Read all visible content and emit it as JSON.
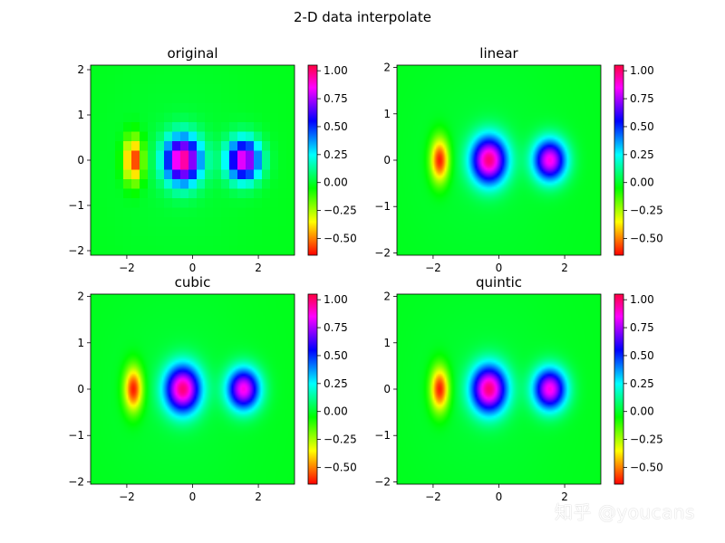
{
  "suptitle": "2-D data interpolate",
  "watermark": "知乎 @youcans",
  "chart_data": [
    {
      "type": "heatmap",
      "title": "original",
      "style": "pixelated",
      "xlim": [
        -3.1,
        3.1
      ],
      "ylim": [
        -2.1,
        2.1
      ],
      "xticks": [
        -2,
        0,
        2
      ],
      "xticklabels": [
        "−2",
        "0",
        "2"
      ],
      "yticks": [
        -2,
        -1,
        0,
        1,
        2
      ],
      "yticklabels": [
        "−2",
        "−1",
        "0",
        "1",
        "2"
      ],
      "colorbar": {
        "range": [
          -0.65,
          1.05
        ],
        "ticks": [
          1.0,
          0.75,
          0.5,
          0.25,
          0.0,
          -0.25,
          -0.5
        ],
        "ticklabels": [
          "1.00",
          "0.75",
          "0.50",
          "0.25",
          "0.00",
          "−0.25",
          "−0.50"
        ]
      }
    },
    {
      "type": "heatmap",
      "title": "linear",
      "style": "smooth",
      "xlim": [
        -3.1,
        3.1
      ],
      "ylim": [
        -2.05,
        2.05
      ],
      "xticks": [
        -2,
        0,
        2
      ],
      "xticklabels": [
        "−2",
        "0",
        "2"
      ],
      "yticks": [
        -2,
        -1,
        0,
        1,
        2
      ],
      "yticklabels": [
        "−2",
        "−1",
        "0",
        "1",
        "2"
      ],
      "colorbar": {
        "range": [
          -0.65,
          1.05
        ],
        "ticks": [
          1.0,
          0.75,
          0.5,
          0.25,
          0.0,
          -0.25,
          -0.5
        ],
        "ticklabels": [
          "1.00",
          "0.75",
          "0.50",
          "0.25",
          "0.00",
          "−0.25",
          "−0.50"
        ]
      }
    },
    {
      "type": "heatmap",
      "title": "cubic",
      "style": "smooth",
      "xlim": [
        -3.1,
        3.1
      ],
      "ylim": [
        -2.05,
        2.05
      ],
      "xticks": [
        -2,
        0,
        2
      ],
      "xticklabels": [
        "−2",
        "0",
        "2"
      ],
      "yticks": [
        -2,
        -1,
        0,
        1,
        2
      ],
      "yticklabels": [
        "−2",
        "−1",
        "0",
        "1",
        "2"
      ],
      "colorbar": {
        "range": [
          -0.65,
          1.05
        ],
        "ticks": [
          1.0,
          0.75,
          0.5,
          0.25,
          0.0,
          -0.25,
          -0.5
        ],
        "ticklabels": [
          "1.00",
          "0.75",
          "0.50",
          "0.25",
          "0.00",
          "−0.25",
          "−0.50"
        ]
      }
    },
    {
      "type": "heatmap",
      "title": "quintic",
      "style": "smooth",
      "xlim": [
        -3.1,
        3.1
      ],
      "ylim": [
        -2.05,
        2.05
      ],
      "xticks": [
        -2,
        0,
        2
      ],
      "xticklabels": [
        "−2",
        "0",
        "2"
      ],
      "yticks": [
        -2,
        -1,
        0,
        1,
        2
      ],
      "yticklabels": [
        "−2",
        "−1",
        "0",
        "1",
        "2"
      ],
      "colorbar": {
        "range": [
          -0.65,
          1.05
        ],
        "ticks": [
          1.0,
          0.75,
          0.5,
          0.25,
          0.0,
          -0.25,
          -0.5
        ],
        "ticklabels": [
          "1.00",
          "0.75",
          "0.50",
          "0.25",
          "0.00",
          "−0.25",
          "−0.50"
        ]
      }
    }
  ],
  "colors": {
    "colormap": "gist_rainbow",
    "stops": [
      "#ff0000",
      "#ffff00",
      "#00ff00",
      "#00ffff",
      "#0000ff",
      "#ff00ff",
      "#ff0040"
    ]
  }
}
